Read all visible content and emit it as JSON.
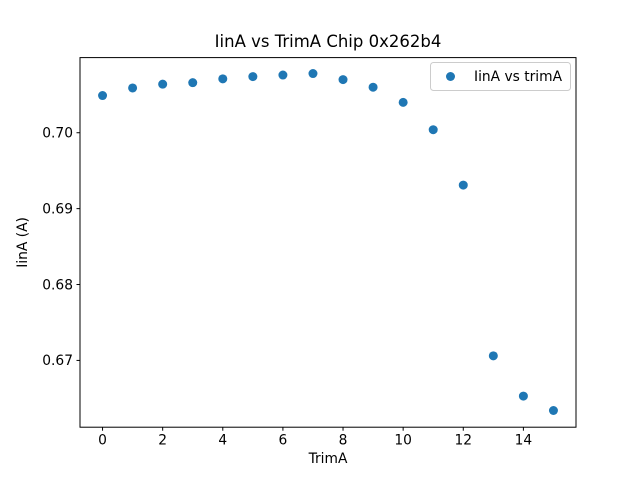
{
  "figure": {
    "background_color": "#ffffff",
    "text_color": "#000000",
    "spine_color": "#000000"
  },
  "chart_data": {
    "type": "scatter",
    "title": "IinA vs TrimA Chip 0x262b4",
    "xlabel": "TrimA",
    "ylabel": "IinA (A)",
    "xlim": [
      -0.75,
      15.75
    ],
    "ylim": [
      0.6612,
      0.7099
    ],
    "xticks": [
      0,
      2,
      4,
      6,
      8,
      10,
      12,
      14
    ],
    "yticks": [
      0.67,
      0.68,
      0.69,
      0.7
    ],
    "ytick_decimals": 2,
    "grid": false,
    "legend": {
      "position": "upper right",
      "label": "IinA vs trimA"
    },
    "series": [
      {
        "name": "IinA vs trimA",
        "marker": "circle",
        "color": "#1f77b4",
        "x": [
          0,
          1,
          2,
          3,
          4,
          5,
          6,
          7,
          8,
          9,
          10,
          11,
          12,
          13,
          14,
          15
        ],
        "y": [
          0.7049,
          0.7059,
          0.7064,
          0.7066,
          0.7071,
          0.7074,
          0.7076,
          0.7078,
          0.707,
          0.706,
          0.704,
          0.7004,
          0.6931,
          0.6706,
          0.6653,
          0.6634
        ]
      }
    ]
  }
}
